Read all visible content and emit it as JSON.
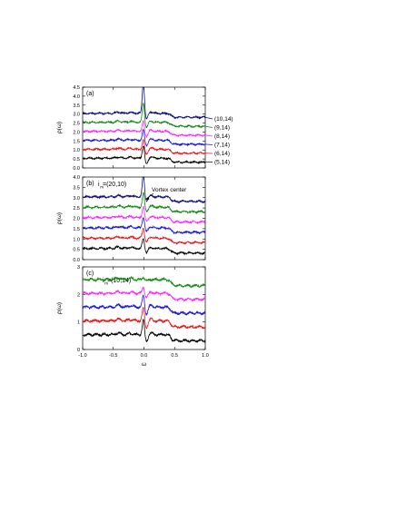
{
  "colors": {
    "black": "#000000",
    "red": "#e8141b",
    "blue": "#1414d8",
    "magenta": "#ff22ff",
    "green": "#108810",
    "navy": "#0a0a7a"
  },
  "chart_data": [
    {
      "type": "line",
      "panel_label": "(a)",
      "ylabel": "ρ(ω)",
      "xlim": [
        -1.0,
        1.0
      ],
      "ylim": [
        0.0,
        4.5
      ],
      "yticks": [
        "0.0",
        "0.5",
        "1.0",
        "1.5",
        "2.0",
        "2.5",
        "3.0",
        "3.5",
        "4.0",
        "4.5"
      ],
      "series": [
        {
          "name": "(5,14)",
          "color": "#000000",
          "offset": 0.0,
          "peak": 0.75,
          "dip": 0.35
        },
        {
          "name": "(6,14)",
          "color": "#e8141b",
          "offset": 0.5,
          "peak": 0.55,
          "dip": 0.3
        },
        {
          "name": "(7,14)",
          "color": "#1414d8",
          "offset": 1.0,
          "peak": 0.6,
          "dip": 0.3
        },
        {
          "name": "(8,14)",
          "color": "#ff22ff",
          "offset": 1.5,
          "peak": 0.6,
          "dip": 0.3
        },
        {
          "name": "(9,14)",
          "color": "#108810",
          "offset": 2.0,
          "peak": 1.1,
          "dip": 0.3
        },
        {
          "name": "(10,14)",
          "color": "#0a0a7a",
          "offset": 2.5,
          "peak": 1.75,
          "dip": 0.35
        }
      ]
    },
    {
      "type": "line",
      "panel_label": "(b)",
      "annotation": "i",
      "annotation_sub": "m",
      "annotation_value": "=(20,10)",
      "callout": "Vortex center",
      "ylabel": "ρ(ω)",
      "xlim": [
        -1.0,
        1.0
      ],
      "ylim": [
        0.0,
        4.0
      ],
      "yticks": [
        "0.0",
        "0.5",
        "1.0",
        "1.5",
        "2.0",
        "2.5",
        "3.0",
        "3.5",
        "4.0"
      ],
      "series": [
        {
          "color": "#000000",
          "offset": 0.0,
          "peak": 0.5,
          "dip": 0.2
        },
        {
          "color": "#e8141b",
          "offset": 0.5,
          "peak": 0.5,
          "dip": 0.2
        },
        {
          "color": "#1414d8",
          "offset": 1.0,
          "peak": 0.55,
          "dip": 0.2
        },
        {
          "color": "#ff22ff",
          "offset": 1.5,
          "peak": 0.55,
          "dip": 0.2
        },
        {
          "color": "#108810",
          "offset": 2.0,
          "peak": 0.7,
          "dip": 0.2
        },
        {
          "color": "#0a0a7a",
          "offset": 2.5,
          "peak": 1.05,
          "dip": 0.2
        }
      ]
    },
    {
      "type": "line",
      "panel_label": "(c)",
      "annotation": "i",
      "annotation_sub": "m",
      "annotation_value": "=(10,14)",
      "ylabel": "ρ(ω)",
      "xlabel": "ω",
      "xlim": [
        -1.0,
        1.0
      ],
      "ylim": [
        0,
        3
      ],
      "yticks": [
        "0",
        "1",
        "2",
        "3"
      ],
      "xticks": [
        "-1.0",
        "-0.5",
        "0.0",
        "0.5",
        "1.0"
      ],
      "series": [
        {
          "color": "#000000",
          "offset": 0.0,
          "peak": 0.55,
          "dip": 0.25
        },
        {
          "color": "#e8141b",
          "offset": 0.5,
          "peak": 0.5,
          "dip": 0.25
        },
        {
          "color": "#1414d8",
          "offset": 1.0,
          "peak": 0.45,
          "dip": 0.25
        },
        {
          "color": "#ff22ff",
          "offset": 1.5,
          "peak": 0.25,
          "dip": 0.15
        },
        {
          "color": "#108810",
          "offset": 2.0,
          "peak": 0.1,
          "dip": 0.05
        }
      ]
    }
  ]
}
